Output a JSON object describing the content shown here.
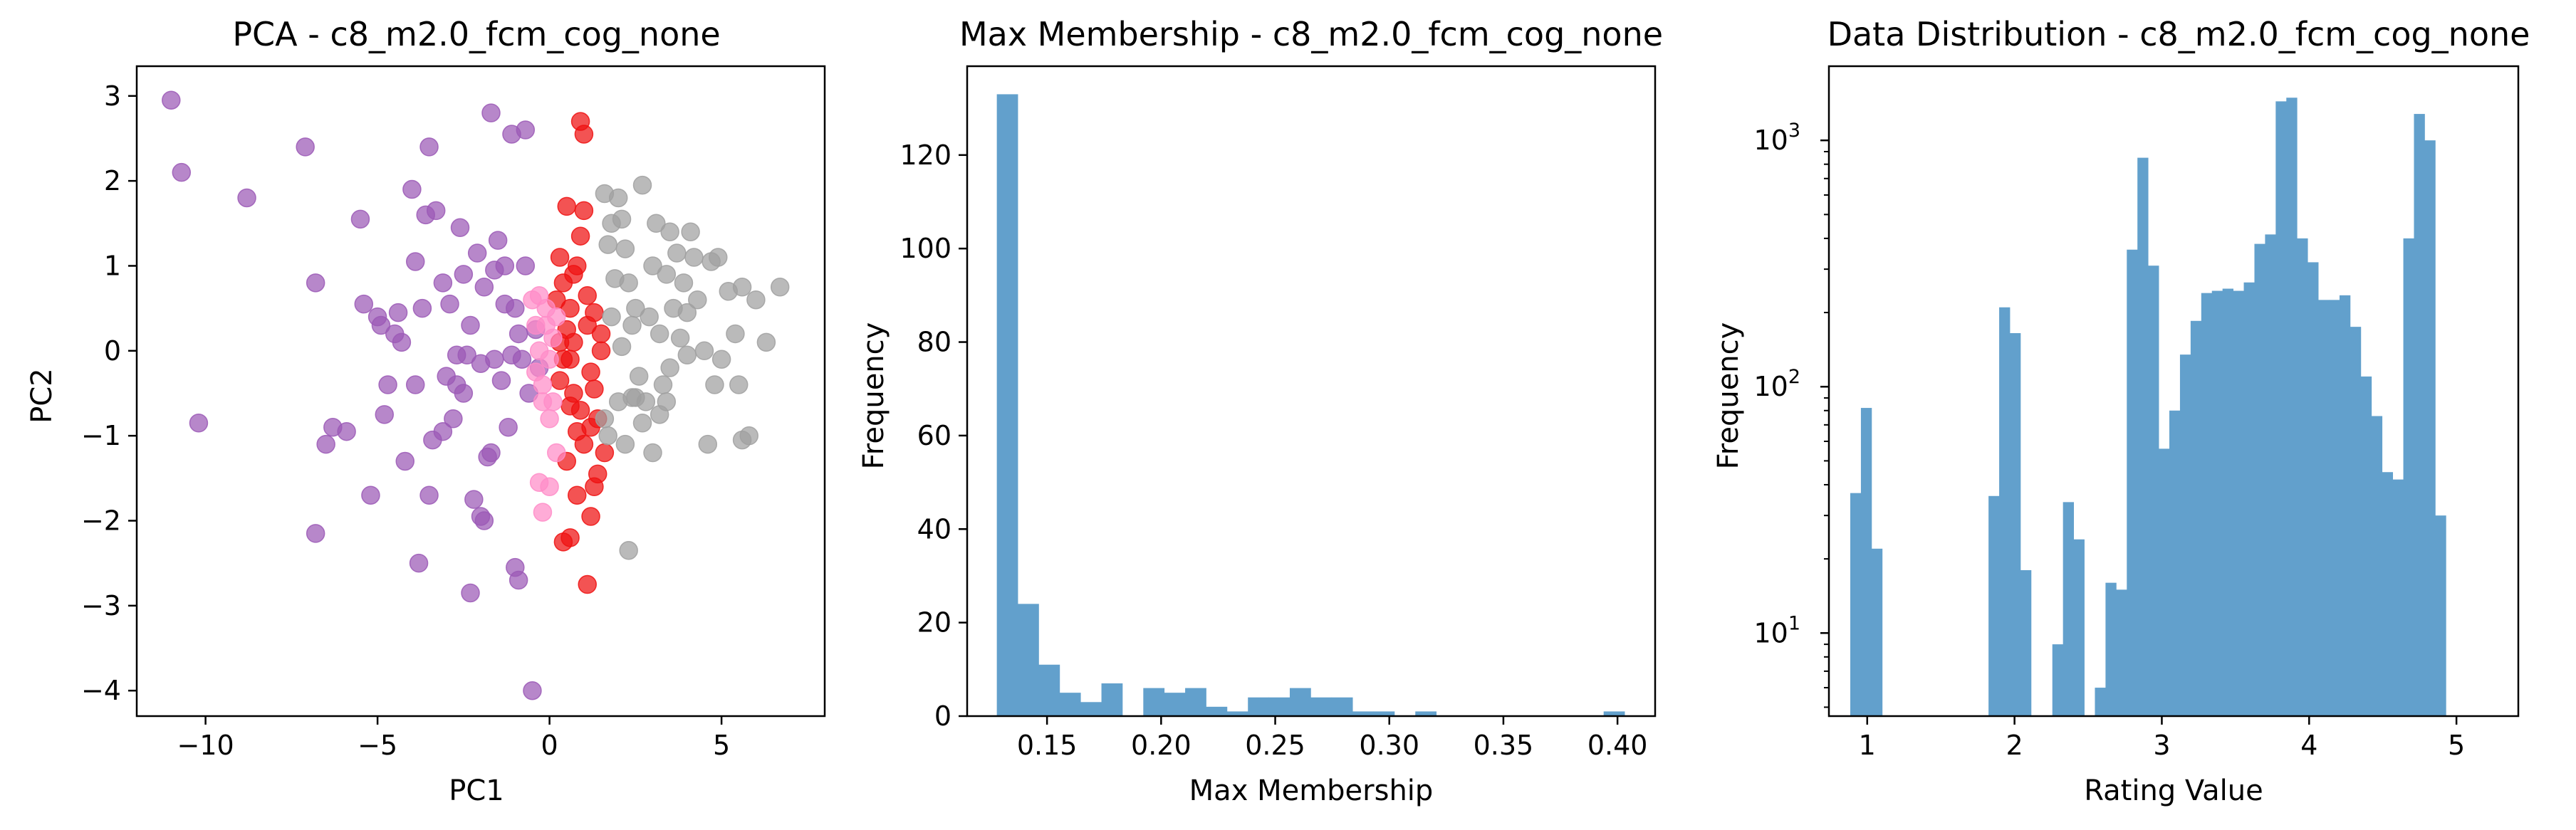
{
  "chart_data": [
    {
      "type": "scatter",
      "title": "PCA - c8_m2.0_fcm_cog_none",
      "xlabel": "PC1",
      "ylabel": "PC2",
      "xlim": [
        -12,
        8
      ],
      "ylim": [
        -4.3,
        3.35
      ],
      "xticks": [
        -10,
        -5,
        0,
        5
      ],
      "xtick_labels": [
        "−10",
        "−5",
        "0",
        "5"
      ],
      "yticks": [
        -4,
        -3,
        -2,
        -1,
        0,
        1,
        2,
        3
      ],
      "ytick_labels": [
        "−4",
        "−3",
        "−2",
        "−1",
        "0",
        "1",
        "2",
        "3"
      ],
      "series": [
        {
          "color": "#9b59b6",
          "points": [
            [
              -11,
              2.95
            ],
            [
              -10.7,
              2.1
            ],
            [
              -10.2,
              -0.85
            ],
            [
              -8.8,
              1.8
            ],
            [
              -7.1,
              2.4
            ],
            [
              -6.8,
              0.8
            ],
            [
              -6.5,
              -1.1
            ],
            [
              -6.3,
              -0.9
            ],
            [
              -5.9,
              -0.95
            ],
            [
              -5.5,
              1.55
            ],
            [
              -5.4,
              0.55
            ],
            [
              -5.2,
              -1.7
            ],
            [
              -5,
              0.4
            ],
            [
              -4.9,
              0.3
            ],
            [
              -4.8,
              -0.75
            ],
            [
              -4.7,
              -0.4
            ],
            [
              -4.5,
              0.2
            ],
            [
              -4.4,
              0.45
            ],
            [
              -4.3,
              0.1
            ],
            [
              -4.2,
              -1.3
            ],
            [
              -4,
              1.9
            ],
            [
              -3.9,
              -0.4
            ],
            [
              -3.9,
              1.05
            ],
            [
              -3.8,
              -2.5
            ],
            [
              -3.7,
              0.5
            ],
            [
              -3.6,
              1.6
            ],
            [
              -3.5,
              2.4
            ],
            [
              -3.4,
              -1.05
            ],
            [
              -3.3,
              1.65
            ],
            [
              -3.1,
              0.8
            ],
            [
              -3,
              -0.3
            ],
            [
              -2.9,
              0.55
            ],
            [
              -2.8,
              -0.8
            ],
            [
              -2.7,
              -0.05
            ],
            [
              -2.6,
              1.45
            ],
            [
              -2.5,
              0.9
            ],
            [
              -2.5,
              -0.5
            ],
            [
              -2.4,
              -0.05
            ],
            [
              -2.3,
              0.3
            ],
            [
              -2.2,
              -1.75
            ],
            [
              -2.1,
              1.15
            ],
            [
              -2,
              -0.15
            ],
            [
              -1.9,
              0.75
            ],
            [
              -1.8,
              -1.25
            ],
            [
              -1.7,
              -1.2
            ],
            [
              -1.7,
              2.8
            ],
            [
              -1.6,
              0.95
            ],
            [
              -1.5,
              1.3
            ],
            [
              -1.4,
              -0.35
            ],
            [
              -1.3,
              0.55
            ],
            [
              -1.2,
              -0.9
            ],
            [
              -1.1,
              2.55
            ],
            [
              -1.1,
              -0.05
            ],
            [
              -1,
              -2.55
            ],
            [
              -0.9,
              0.2
            ],
            [
              -0.8,
              -0.1
            ],
            [
              -0.7,
              2.6
            ],
            [
              -0.6,
              -0.5
            ],
            [
              -0.5,
              -4.0
            ],
            [
              -0.4,
              0.25
            ],
            [
              -0.3,
              -0.2
            ],
            [
              -2.3,
              -2.85
            ],
            [
              -6.8,
              -2.15
            ],
            [
              -3.5,
              -1.7
            ],
            [
              -1.9,
              -2.0
            ],
            [
              -1.3,
              1.0
            ],
            [
              -0.9,
              -2.7
            ],
            [
              -2,
              -1.95
            ],
            [
              -3.1,
              -0.95
            ],
            [
              -2.7,
              -0.4
            ],
            [
              -1.6,
              -0.1
            ],
            [
              -1,
              0.5
            ],
            [
              -0.7,
              1.0
            ]
          ]
        },
        {
          "color": "#ee1111",
          "points": [
            [
              0.3,
              1.1
            ],
            [
              0.4,
              -0.1
            ],
            [
              0.5,
              1.7
            ],
            [
              0.6,
              0.5
            ],
            [
              0.7,
              -0.5
            ],
            [
              0.8,
              1.0
            ],
            [
              0.9,
              2.7
            ],
            [
              1,
              2.55
            ],
            [
              1.1,
              0.3
            ],
            [
              1.2,
              -0.9
            ],
            [
              1.3,
              -1.6
            ],
            [
              1.4,
              -1.45
            ],
            [
              1.5,
              0.0
            ],
            [
              1.6,
              -1.2
            ],
            [
              0.4,
              -2.25
            ],
            [
              0.6,
              -2.2
            ],
            [
              0.8,
              -1.7
            ],
            [
              1.1,
              -2.75
            ],
            [
              1.2,
              -1.95
            ],
            [
              0.5,
              0.25
            ],
            [
              0.7,
              0.1
            ],
            [
              0.9,
              1.35
            ],
            [
              1,
              1.65
            ],
            [
              1.3,
              0.45
            ],
            [
              0.2,
              0.6
            ],
            [
              0.3,
              -0.35
            ],
            [
              0.8,
              -0.95
            ],
            [
              1.4,
              -0.8
            ],
            [
              0.6,
              -0.1
            ],
            [
              1,
              -1.1
            ],
            [
              0.4,
              0.8
            ],
            [
              1.2,
              -0.25
            ],
            [
              0.5,
              -1.3
            ],
            [
              0.9,
              -0.7
            ],
            [
              1.5,
              0.2
            ],
            [
              0.7,
              0.9
            ],
            [
              0.3,
              0.1
            ],
            [
              1.1,
              0.65
            ],
            [
              0.6,
              -0.65
            ],
            [
              1.3,
              -0.45
            ]
          ]
        },
        {
          "color": "#ff8cc8",
          "points": [
            [
              -0.5,
              0.6
            ],
            [
              -0.4,
              0.3
            ],
            [
              -0.3,
              0.0
            ],
            [
              -0.2,
              -0.4
            ],
            [
              -0.1,
              0.5
            ],
            [
              0,
              -0.8
            ],
            [
              0.1,
              0.15
            ],
            [
              0.2,
              -1.2
            ],
            [
              -0.3,
              -1.55
            ],
            [
              -0.2,
              -1.9
            ],
            [
              0,
              -1.6
            ],
            [
              -0.4,
              -0.25
            ],
            [
              0.1,
              -0.6
            ],
            [
              -0.1,
              0.3
            ],
            [
              0.2,
              0.4
            ],
            [
              -0.3,
              0.65
            ],
            [
              0,
              -0.1
            ],
            [
              -0.2,
              -0.6
            ]
          ]
        },
        {
          "color": "#a0a0a0",
          "points": [
            [
              1.6,
              1.85
            ],
            [
              1.8,
              1.5
            ],
            [
              2,
              1.8
            ],
            [
              2.2,
              1.2
            ],
            [
              2.3,
              0.8
            ],
            [
              2.5,
              0.5
            ],
            [
              2.7,
              1.95
            ],
            [
              2.9,
              0.4
            ],
            [
              3,
              1.0
            ],
            [
              3.1,
              1.5
            ],
            [
              3.2,
              0.2
            ],
            [
              3.3,
              -0.4
            ],
            [
              3.4,
              0.9
            ],
            [
              3.5,
              1.4
            ],
            [
              3.6,
              0.5
            ],
            [
              3.7,
              1.15
            ],
            [
              3.8,
              0.15
            ],
            [
              3.9,
              0.8
            ],
            [
              4,
              0.45
            ],
            [
              4.1,
              1.4
            ],
            [
              4.2,
              1.1
            ],
            [
              4.3,
              0.6
            ],
            [
              4.5,
              0.0
            ],
            [
              4.7,
              1.05
            ],
            [
              4.8,
              -0.4
            ],
            [
              5,
              -0.1
            ],
            [
              5.2,
              0.7
            ],
            [
              5.4,
              0.2
            ],
            [
              5.6,
              0.75
            ],
            [
              5.8,
              -1.0
            ],
            [
              6,
              0.6
            ],
            [
              6.3,
              0.1
            ],
            [
              6.7,
              0.75
            ],
            [
              5.5,
              -0.4
            ],
            [
              5.6,
              -1.05
            ],
            [
              4.6,
              -1.1
            ],
            [
              3.4,
              -0.6
            ],
            [
              3.2,
              -0.75
            ],
            [
              3,
              -1.2
            ],
            [
              2.7,
              -0.85
            ],
            [
              2.5,
              -0.55
            ],
            [
              2.4,
              -0.55
            ],
            [
              2.2,
              -1.1
            ],
            [
              2,
              -0.6
            ],
            [
              1.9,
              0.85
            ],
            [
              1.8,
              0.4
            ],
            [
              1.7,
              -1.0
            ],
            [
              1.6,
              -0.8
            ],
            [
              2.1,
              0.05
            ],
            [
              2.4,
              0.3
            ],
            [
              2.6,
              -0.3
            ],
            [
              3.5,
              -0.2
            ],
            [
              4,
              -0.05
            ],
            [
              4.9,
              1.1
            ],
            [
              2.8,
              -0.6
            ],
            [
              2.3,
              -2.35
            ],
            [
              1.7,
              1.25
            ],
            [
              2.1,
              1.55
            ]
          ]
        }
      ]
    },
    {
      "type": "bar",
      "title": "Max Membership - c8_m2.0_fcm_cog_none",
      "xlabel": "Max Membership",
      "ylabel": "Frequency",
      "xlim": [
        0.115,
        0.4165
      ],
      "ylim": [
        0,
        139
      ],
      "xticks": [
        0.15,
        0.2,
        0.25,
        0.3,
        0.35,
        0.4
      ],
      "xtick_labels": [
        "0.15",
        "0.20",
        "0.25",
        "0.30",
        "0.35",
        "0.40"
      ],
      "yticks": [
        0,
        20,
        40,
        60,
        80,
        100,
        120
      ],
      "ytick_labels": [
        "0",
        "20",
        "40",
        "60",
        "80",
        "100",
        "120"
      ],
      "color": "#62a0cc",
      "bin_start": 0.128,
      "bin_width": 0.00917,
      "values": [
        133,
        24,
        11,
        5,
        3,
        7,
        0,
        6,
        5,
        6,
        2,
        1,
        4,
        4,
        6,
        4,
        4,
        1,
        1,
        0,
        1,
        0,
        0,
        0,
        0,
        0,
        0,
        0,
        0,
        1
      ]
    },
    {
      "type": "bar",
      "title": "Data Distribution - c8_m2.0_fcm_cog_none",
      "xlabel": "Rating Value",
      "ylabel": "Frequency",
      "yscale": "log",
      "xlim": [
        0.74,
        5.42
      ],
      "ylim": [
        4.6,
        2000
      ],
      "xticks": [
        1,
        2,
        3,
        4,
        5
      ],
      "xtick_labels": [
        "1",
        "2",
        "3",
        "4",
        "5"
      ],
      "yticks": [
        10,
        100,
        1000
      ],
      "ytick_labels": [
        "10",
        "10",
        "10"
      ],
      "ytick_exponents": [
        "1",
        "2",
        "3"
      ],
      "color": "#62a0cc",
      "bin_start": 0.885,
      "bin_width": 0.0722,
      "values": [
        37,
        82,
        22,
        0,
        0,
        0,
        0,
        0,
        0,
        0,
        0,
        0,
        0,
        36,
        210,
        165,
        18,
        0,
        0,
        9,
        34,
        24,
        0,
        6,
        16,
        15,
        360,
        850,
        310,
        56,
        80,
        135,
        185,
        240,
        245,
        250,
        245,
        265,
        380,
        415,
        1440,
        1490,
        400,
        320,
        225,
        225,
        235,
        175,
        110,
        76,
        45,
        42,
        400,
        1280,
        1000,
        30
      ]
    }
  ]
}
